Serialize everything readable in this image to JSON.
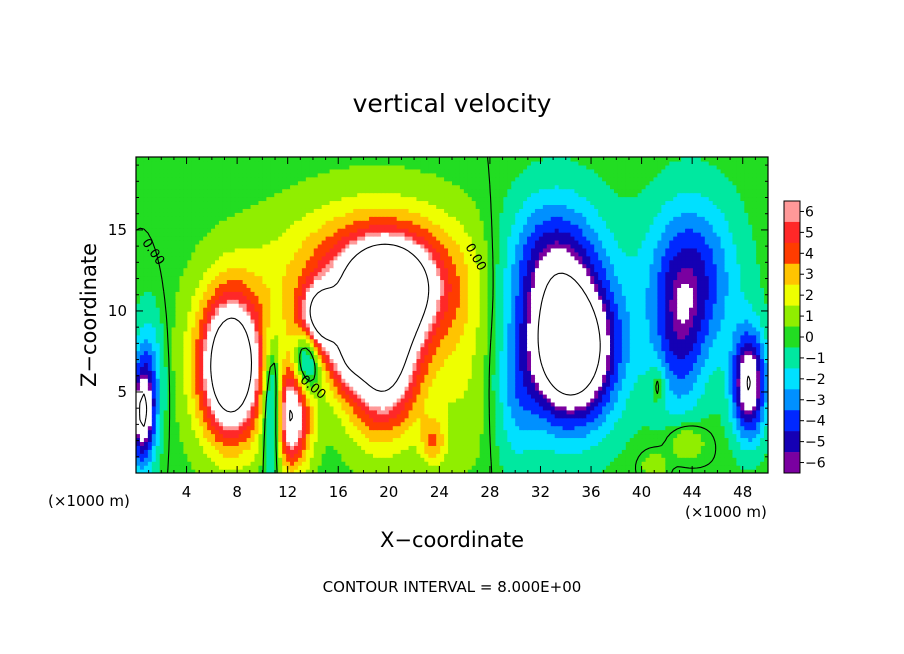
{
  "chart_data": {
    "type": "heatmap",
    "title": "vertical velocity",
    "xlabel": "X−coordinate",
    "ylabel": "Z−coordinate",
    "x_unit": "(×1000 m)",
    "x_unit_right": "(×1000 m)",
    "footer": "CONTOUR INTERVAL = 8.000E+00",
    "xlim": [
      0,
      50
    ],
    "ylim": [
      0,
      19.5
    ],
    "x_ticks": [
      4,
      8,
      12,
      16,
      20,
      24,
      28,
      32,
      36,
      40,
      44,
      48
    ],
    "x_tick_labels": [
      "4",
      "8",
      "12",
      "16",
      "20",
      "24",
      "28",
      "32",
      "36",
      "40",
      "44",
      "48"
    ],
    "y_ticks": [
      5,
      10,
      15
    ],
    "y_tick_labels": [
      "5",
      "10",
      "15"
    ],
    "colorbar": {
      "min": -6,
      "max": 6,
      "ticks": [
        6,
        5,
        4,
        3,
        2,
        1,
        0,
        -1,
        -2,
        -3,
        -4,
        -5,
        -6
      ],
      "tick_labels": [
        "6",
        "5",
        "4",
        "3",
        "2",
        "1",
        "0",
        "−1",
        "−2",
        "−3",
        "−4",
        "−5",
        "−6"
      ]
    },
    "contour_labels": [
      {
        "text": "0.00",
        "x": 1.1,
        "z": 13.5,
        "angle": 55
      },
      {
        "text": "0.00",
        "x": 26.6,
        "z": 13.2,
        "angle": 60
      },
      {
        "text": "0.00",
        "x": 13.8,
        "z": 5.1,
        "angle": 40
      }
    ],
    "features": [
      {
        "x": 7.5,
        "z": 6.5,
        "sx": 2.3,
        "sz": 4.2,
        "a": 9.5
      },
      {
        "x": 7.5,
        "z": 7.0,
        "sx": 3.6,
        "sz": 5.5,
        "a": 2.5
      },
      {
        "x": 10.8,
        "z": 4.0,
        "sx": 0.8,
        "sz": 3.8,
        "a": -7.0
      },
      {
        "x": 12.2,
        "z": 3.5,
        "sx": 1.6,
        "sz": 3.2,
        "a": 8.0
      },
      {
        "x": 13.5,
        "z": 7.0,
        "sx": 1.0,
        "sz": 2.0,
        "a": -5.0
      },
      {
        "x": 14.5,
        "z": 9.5,
        "sx": 1.5,
        "sz": 2.0,
        "a": 7.0
      },
      {
        "x": 16.5,
        "z": 7.0,
        "sx": 1.5,
        "sz": 2.0,
        "a": 3.0
      },
      {
        "x": 19.5,
        "z": 7.0,
        "sx": 3.0,
        "sz": 4.5,
        "a": 9.0
      },
      {
        "x": 20.0,
        "z": 11.5,
        "sx": 3.5,
        "sz": 2.8,
        "a": 7.0
      },
      {
        "x": 19.0,
        "z": 12.0,
        "sx": 7.5,
        "sz": 4.5,
        "a": 5.5
      },
      {
        "x": 23.5,
        "z": 2.0,
        "sx": 1.0,
        "sz": 1.5,
        "a": 3.0
      },
      {
        "x": 34.5,
        "z": 7.5,
        "sx": 3.2,
        "sz": 4.0,
        "a": -9.5
      },
      {
        "x": 33.0,
        "z": 13.0,
        "sx": 3.5,
        "sz": 4.0,
        "a": -4.0
      },
      {
        "x": 33.5,
        "z": 9.0,
        "sx": 5.0,
        "sz": 6.5,
        "a": -3.0
      },
      {
        "x": 44.0,
        "z": 12.0,
        "sx": 3.5,
        "sz": 5.0,
        "a": -4.5
      },
      {
        "x": 43.0,
        "z": 8.0,
        "sx": 2.0,
        "sz": 5.0,
        "a": -3.0
      },
      {
        "x": 48.5,
        "z": 5.5,
        "sx": 1.3,
        "sz": 3.2,
        "a": -8.0
      },
      {
        "x": 0.5,
        "z": 3.5,
        "sx": 0.9,
        "sz": 3.0,
        "a": -7.0
      },
      {
        "x": 1.0,
        "z": 6.0,
        "sx": 1.2,
        "sz": 4.0,
        "a": -3.0
      },
      {
        "x": 41.3,
        "z": 5.5,
        "sx": 0.5,
        "sz": 1.2,
        "a": 2.0
      },
      {
        "x": 43.5,
        "z": 2.0,
        "sx": 1.5,
        "sz": 1.2,
        "a": 2.0
      },
      {
        "x": 41.0,
        "z": 0.5,
        "sx": 1.0,
        "sz": 0.8,
        "a": 1.5
      },
      {
        "x": 30.0,
        "z": 4.0,
        "sx": 1.5,
        "sz": 4.0,
        "a": -1.5
      },
      {
        "x": 26.0,
        "z": 6.0,
        "sx": 2.5,
        "sz": 6.0,
        "a": 1.5
      }
    ]
  }
}
